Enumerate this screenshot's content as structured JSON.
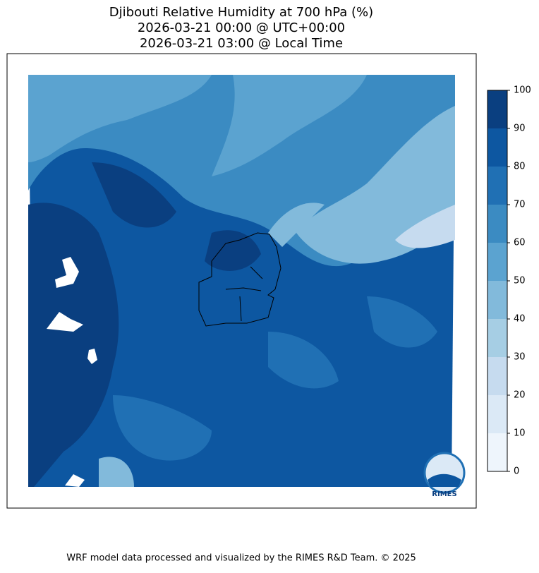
{
  "header": {
    "title_lines": [
      "Djibouti Relative Humidity at 700 hPa (%)",
      "2026-03-21 00:00 @ UTC+00:00",
      "2026-03-21 03:00 @ Local Time"
    ]
  },
  "colorbar": {
    "lim": [
      0,
      100
    ],
    "ticks": [
      0,
      10,
      20,
      30,
      40,
      50,
      60,
      70,
      80,
      90,
      100
    ],
    "colors": [
      "#eef5fc",
      "#dbe9f6",
      "#c6dbef",
      "#a6cee4",
      "#82badb",
      "#5ba3d0",
      "#3b8bc2",
      "#2070b4",
      "#0d57a1",
      "#0a3f80"
    ]
  },
  "logo": {
    "text": "RIMES"
  },
  "footer": {
    "text": "WRF model data processed and visualized by the RIMES R&D Team. © 2025"
  }
}
